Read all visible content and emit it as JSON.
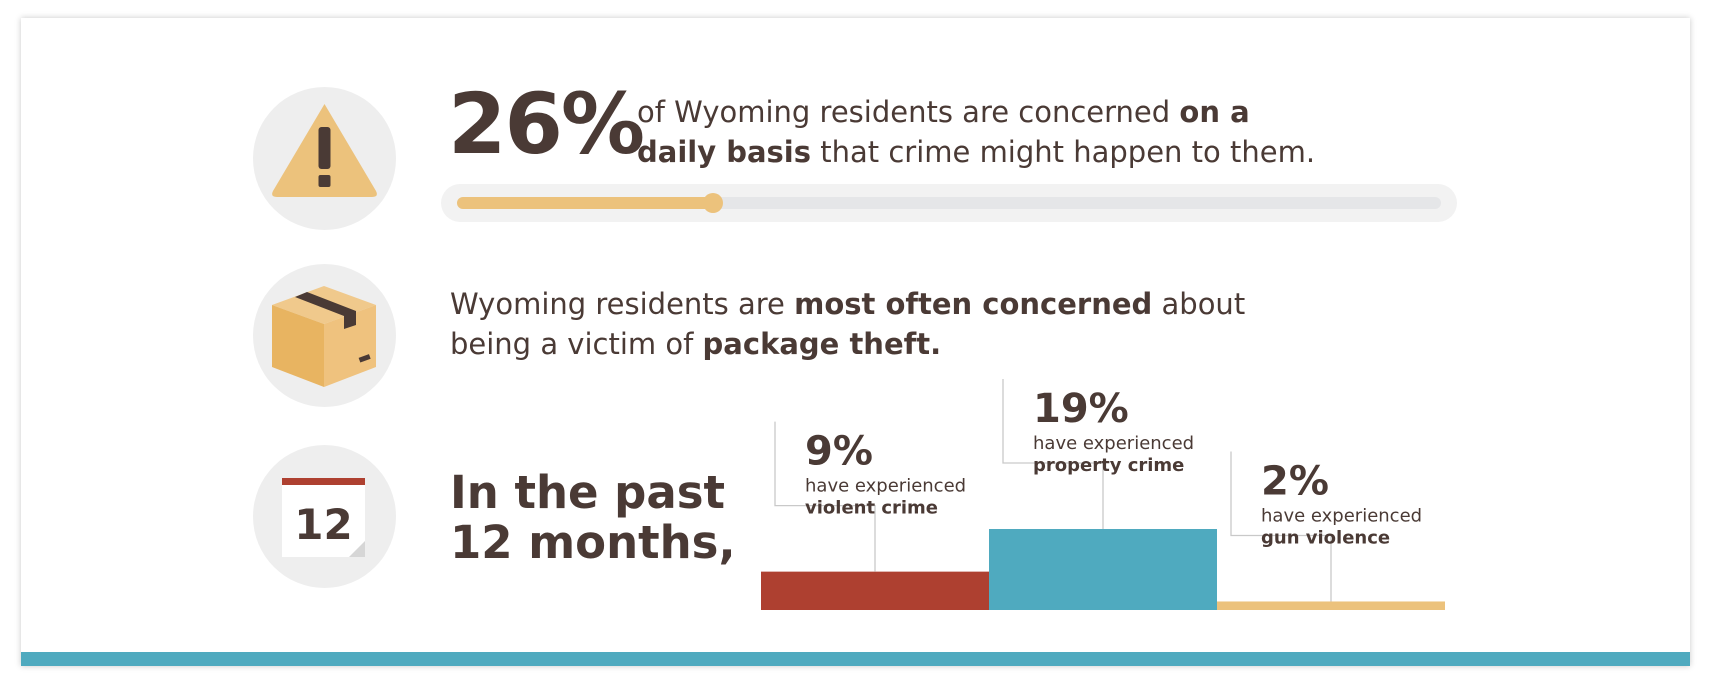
{
  "row1": {
    "icon": "warning-triangle-icon",
    "big_percent": "26%",
    "text_a": "of Wyoming residents are concerned ",
    "text_b": "on a",
    "text_c": "daily basis",
    "text_d": " that crime might happen to them.",
    "progress_fraction": 0.26
  },
  "row2": {
    "icon": "package-box-icon",
    "text_a": "Wyoming residents are ",
    "text_b": "most often concerned",
    "text_c": " about",
    "text_d": "being a victim of ",
    "text_e": "package theft."
  },
  "row3": {
    "icon": "calendar-icon",
    "calendar_number": "12",
    "line1": "In the past",
    "line2": "12 months,"
  },
  "chart_data": {
    "type": "bar",
    "categories": [
      "violent crime",
      "property crime",
      "gun violence"
    ],
    "values": [
      9,
      19,
      2
    ],
    "value_labels": [
      "9%",
      "19%",
      "2%"
    ],
    "label_prefix": "have experienced",
    "colors": [
      "#ae4030",
      "#4faabf",
      "#ecc27c"
    ],
    "ylim": [
      0,
      19
    ],
    "grid": false
  },
  "colors": {
    "text": "#4a3a35",
    "accent_gold": "#ecc27c",
    "accent_teal": "#4faabf",
    "accent_red": "#ae4030"
  }
}
